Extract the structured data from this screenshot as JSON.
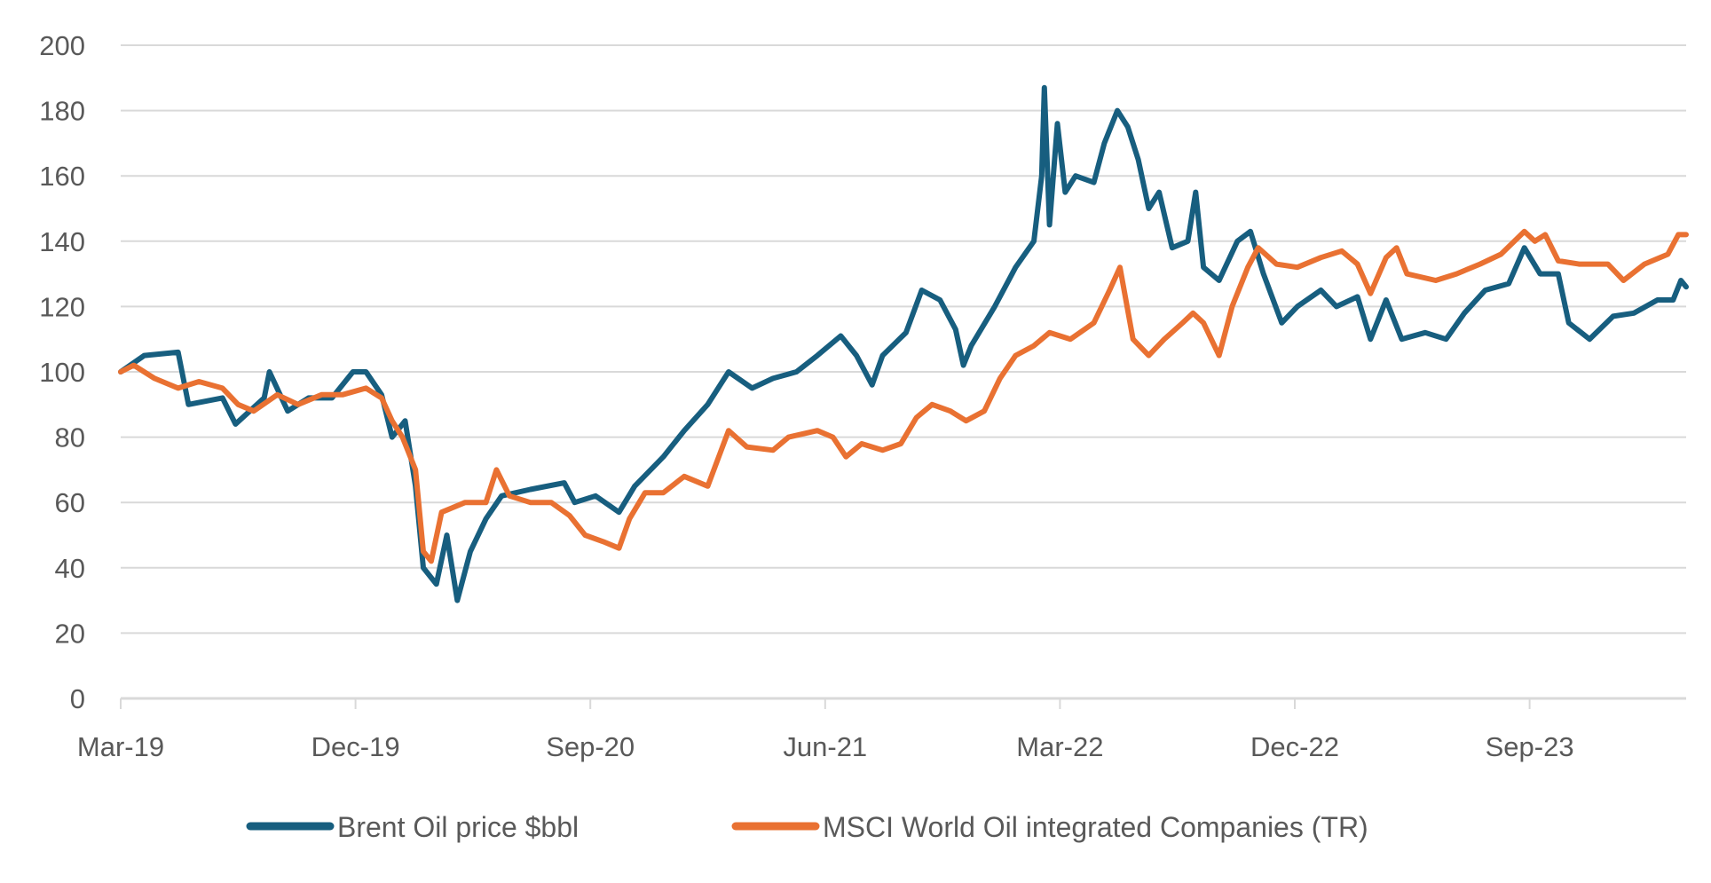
{
  "chart_data": {
    "type": "line",
    "title": "",
    "xlabel": "",
    "ylabel": "",
    "x_unit": "months since Mar-19",
    "xlim": [
      0,
      60
    ],
    "ylim": [
      0,
      200
    ],
    "yticks": [
      0,
      20,
      40,
      60,
      80,
      100,
      120,
      140,
      160,
      180,
      200
    ],
    "xticks": [
      {
        "value": 0,
        "label": "Mar-19"
      },
      {
        "value": 9,
        "label": "Dec-19"
      },
      {
        "value": 18,
        "label": "Sep-20"
      },
      {
        "value": 27,
        "label": "Jun-21"
      },
      {
        "value": 36,
        "label": "Mar-22"
      },
      {
        "value": 45,
        "label": "Dec-22"
      },
      {
        "value": 54,
        "label": "Sep-23"
      }
    ],
    "grid": true,
    "legend_position": "bottom",
    "series": [
      {
        "name": "Brent Oil price $bbl",
        "color": "#175E7F",
        "x": [
          0,
          0.9,
          2.2,
          2.6,
          3.9,
          4.4,
          5.5,
          5.7,
          6.4,
          7.2,
          8.1,
          8.9,
          9.4,
          10.0,
          10.4,
          10.9,
          11.3,
          11.6,
          12.1,
          12.5,
          12.9,
          13.4,
          14.0,
          14.6,
          15.7,
          17.0,
          17.4,
          18.2,
          19.1,
          19.7,
          20.8,
          21.6,
          22.5,
          23.3,
          24.2,
          25.0,
          25.9,
          26.7,
          27.6,
          28.2,
          28.8,
          29.2,
          30.1,
          30.7,
          31.4,
          32.0,
          32.3,
          32.6,
          33.5,
          34.3,
          35.0,
          35.3,
          35.4,
          35.6,
          35.9,
          36.2,
          36.6,
          37.3,
          37.7,
          38.2,
          38.6,
          39.0,
          39.4,
          39.8,
          40.3,
          40.9,
          41.2,
          41.5,
          42.1,
          42.8,
          43.3,
          43.8,
          44.5,
          45.1,
          46.0,
          46.6,
          47.4,
          47.9,
          48.5,
          49.1,
          50.0,
          50.8,
          51.5,
          52.3,
          53.2,
          53.8,
          54.4,
          55.1,
          55.5,
          56.3,
          57.2,
          58.0,
          58.9,
          59.5,
          59.8,
          60.0
        ],
        "values": [
          100,
          105,
          106,
          90,
          92,
          84,
          92,
          100,
          88,
          92,
          92,
          100,
          100,
          93,
          80,
          85,
          65,
          40,
          35,
          50,
          30,
          45,
          55,
          62,
          64,
          66,
          60,
          62,
          57,
          65,
          74,
          82,
          90,
          100,
          95,
          98,
          100,
          105,
          111,
          105,
          96,
          105,
          112,
          125,
          122,
          113,
          102,
          108,
          120,
          132,
          140,
          160,
          187,
          145,
          176,
          155,
          160,
          158,
          170,
          180,
          175,
          165,
          150,
          155,
          138,
          140,
          155,
          132,
          128,
          140,
          143,
          130,
          115,
          120,
          125,
          120,
          123,
          110,
          122,
          110,
          112,
          110,
          118,
          125,
          127,
          138,
          130,
          130,
          115,
          110,
          117,
          118,
          122,
          122,
          128,
          126
        ]
      },
      {
        "name": "MSCI World Oil integrated Companies (TR)",
        "color": "#E97132",
        "x": [
          0,
          0.5,
          1.3,
          2.2,
          3.0,
          3.9,
          4.5,
          5.1,
          6.0,
          6.8,
          7.7,
          8.5,
          9.4,
          10.0,
          10.4,
          10.8,
          11.3,
          11.6,
          11.9,
          12.3,
          13.2,
          14.0,
          14.4,
          14.9,
          15.7,
          16.5,
          17.2,
          17.8,
          18.5,
          19.1,
          19.5,
          20.1,
          20.8,
          21.6,
          22.5,
          23.3,
          24.0,
          25.0,
          25.6,
          26.7,
          27.3,
          27.8,
          28.4,
          29.2,
          29.9,
          30.5,
          31.1,
          31.8,
          32.4,
          33.1,
          33.7,
          34.3,
          35.0,
          35.6,
          36.4,
          37.3,
          37.9,
          38.3,
          38.8,
          39.4,
          40.0,
          40.7,
          41.1,
          41.5,
          42.1,
          42.6,
          43.2,
          43.6,
          44.3,
          45.1,
          46.0,
          46.8,
          47.4,
          47.9,
          48.5,
          48.9,
          49.3,
          50.4,
          51.2,
          52.1,
          52.9,
          53.8,
          54.2,
          54.6,
          55.1,
          55.9,
          57.0,
          57.6,
          58.4,
          59.3,
          59.7,
          60.0
        ],
        "values": [
          100,
          102,
          98,
          95,
          97,
          95,
          90,
          88,
          93,
          90,
          93,
          93,
          95,
          92,
          85,
          80,
          70,
          45,
          42,
          57,
          60,
          60,
          70,
          62,
          60,
          60,
          56,
          50,
          48,
          46,
          55,
          63,
          63,
          68,
          65,
          82,
          77,
          76,
          80,
          82,
          80,
          74,
          78,
          76,
          78,
          86,
          90,
          88,
          85,
          88,
          98,
          105,
          108,
          112,
          110,
          115,
          125,
          132,
          110,
          105,
          110,
          115,
          118,
          115,
          105,
          120,
          132,
          138,
          133,
          132,
          135,
          137,
          133,
          124,
          135,
          138,
          130,
          128,
          130,
          133,
          136,
          143,
          140,
          142,
          134,
          133,
          133,
          128,
          133,
          136,
          142,
          142
        ]
      }
    ]
  }
}
